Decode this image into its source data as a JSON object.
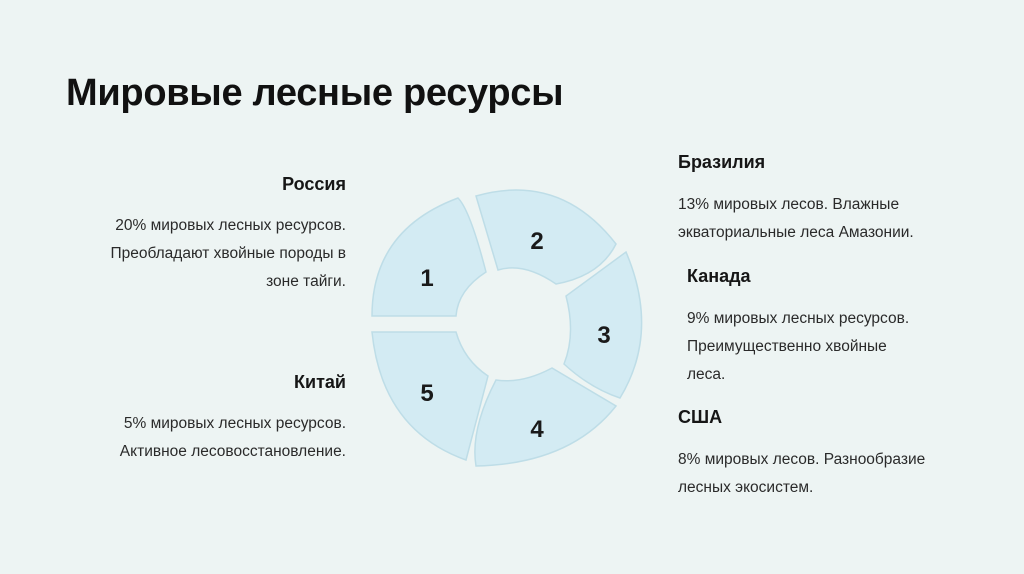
{
  "title": "Мировые лесные ресурсы",
  "segments": [
    {
      "number": "1"
    },
    {
      "number": "2"
    },
    {
      "number": "3"
    },
    {
      "number": "4"
    },
    {
      "number": "5"
    }
  ],
  "countries": {
    "russia": {
      "name": "Россия",
      "lines": [
        "20% мировых лесных ресурсов.",
        "Преобладают хвойные породы в",
        "зоне тайги."
      ]
    },
    "brazil": {
      "name": "Бразилия",
      "lines": [
        "13% мировых лесов. Влажные",
        "экваториальные леса Амазонии."
      ]
    },
    "canada": {
      "name": "Канада",
      "lines": [
        "9% мировых лесных ресурсов.",
        "Преимущественно хвойные",
        "леса."
      ]
    },
    "usa": {
      "name": "США",
      "lines": [
        "8% мировых лесов. Разнообразие",
        "лесных экосистем."
      ]
    },
    "china": {
      "name": "Китай",
      "lines": [
        "5% мировых лесных ресурсов.",
        "Активное лесовосстановление."
      ]
    }
  },
  "colors": {
    "background": "#edf4f3",
    "segment_fill": "#d3ebf3",
    "segment_stroke": "#bedde7",
    "text": "#202020"
  }
}
